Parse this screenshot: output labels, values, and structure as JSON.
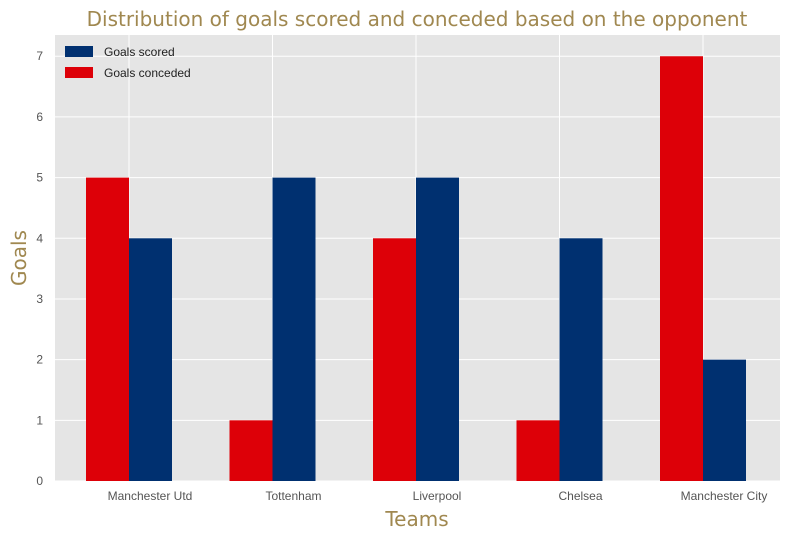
{
  "chart_data": {
    "type": "bar",
    "title": "Distribution of goals scored and conceded based on the opponent",
    "xlabel": "Teams",
    "ylabel": "Goals",
    "categories": [
      "Manchester Utd",
      "Tottenham",
      "Liverpool",
      "Chelsea",
      "Manchester City"
    ],
    "series": [
      {
        "name": "Goals scored",
        "values": [
          4,
          5,
          5,
          4,
          2
        ],
        "color": "#003070"
      },
      {
        "name": "Goals conceded",
        "values": [
          5,
          1,
          4,
          1,
          7
        ],
        "color": "#DD0008"
      }
    ],
    "bar_order": [
      "Goals conceded",
      "Goals scored"
    ],
    "ylim": [
      0,
      7.35
    ],
    "yticks": [
      0,
      1,
      2,
      3,
      4,
      5,
      6,
      7
    ],
    "grid": true,
    "legend_position": "top-left",
    "background_color": "#E5E5E5",
    "grid_color": "#FFFFFF"
  }
}
